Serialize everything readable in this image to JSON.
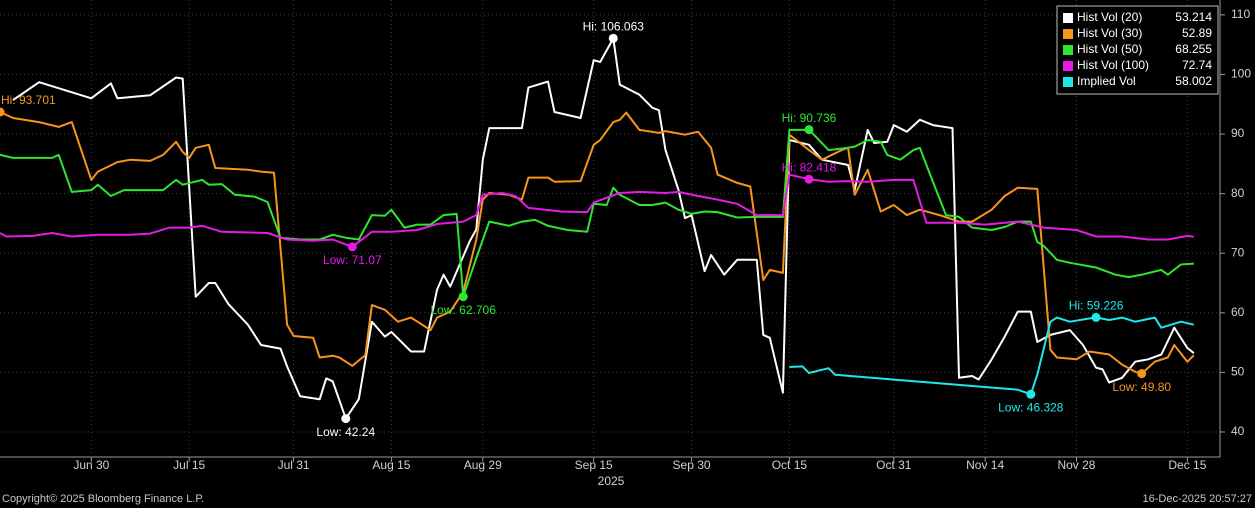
{
  "chart_data": {
    "type": "line",
    "xlabel": "2025",
    "xlim": [
      "Jun 16",
      "Dec 20"
    ],
    "xticks": [
      "Jun 30",
      "Jul 15",
      "Jul 31",
      "Aug 15",
      "Aug 29",
      "Sep 15",
      "Sep 30",
      "Oct 15",
      "Oct 31",
      "Nov 14",
      "Nov 28",
      "Dec 15"
    ],
    "ylim": [
      35.8,
      112.5
    ],
    "yticks": [
      40,
      50,
      60,
      70,
      80,
      90,
      100,
      110
    ],
    "grid": true,
    "legend": "top-right",
    "series": [
      {
        "name": "Hist Vol (20)",
        "color": "#ffffff",
        "last_value": 53.214,
        "x": [
          "Jun 18",
          "Jun 22",
          "Jun 30",
          "Jul 3",
          "Jul 4",
          "Jul 9",
          "Jul 13",
          "Jul 14",
          "Jul 16",
          "Jul 18",
          "Jul 19",
          "Jul 21",
          "Jul 24",
          "Jul 26",
          "Jul 29",
          "Jul 30",
          "Aug 1",
          "Aug 4",
          "Aug 5",
          "Aug 6",
          "Aug 8",
          "Aug 10",
          "Aug 12",
          "Aug 14",
          "Aug 15",
          "Aug 18",
          "Aug 20",
          "Aug 22",
          "Aug 23",
          "Aug 24",
          "Aug 27",
          "Aug 28",
          "Aug 29",
          "Aug 30",
          "Sep 4",
          "Sep 5",
          "Sep 8",
          "Sep 9",
          "Sep 13",
          "Sep 15",
          "Sep 16",
          "Sep 18",
          "Sep 19",
          "Sep 22",
          "Sep 24",
          "Sep 25",
          "Sep 26",
          "Sep 28",
          "Sep 29",
          "Sep 30",
          "Oct 2",
          "Oct 3",
          "Oct 5",
          "Oct 7",
          "Oct 10",
          "Oct 11",
          "Oct 12",
          "Oct 14",
          "Oct 15",
          "Oct 18",
          "Oct 20",
          "Oct 24",
          "Oct 25",
          "Oct 27",
          "Oct 28",
          "Oct 30",
          "Oct 31",
          "Nov 2",
          "Nov 4",
          "Nov 6",
          "Nov 9",
          "Nov 10",
          "Nov 12",
          "Nov 13",
          "Nov 15",
          "Nov 17",
          "Nov 19",
          "Nov 21",
          "Nov 22",
          "Nov 24",
          "Nov 27",
          "Nov 29",
          "Dec 1",
          "Dec 2",
          "Dec 3",
          "Dec 5",
          "Dec 7",
          "Dec 9",
          "Dec 11",
          "Dec 13",
          "Dec 15",
          "Dec 16"
        ],
        "values": [
          95.7,
          98.7,
          96,
          98.5,
          96,
          96.5,
          99.5,
          99.3,
          62.7,
          65,
          65,
          61.5,
          58,
          54.6,
          54,
          51,
          46,
          45.5,
          49,
          48.5,
          42.24,
          45.5,
          58.5,
          56,
          56.8,
          53.5,
          53.5,
          63.9,
          66.4,
          64.4,
          72,
          74,
          85.7,
          91,
          91,
          97.8,
          98.8,
          93.7,
          92.7,
          102.4,
          102.1,
          106.063,
          98.3,
          96.6,
          94.4,
          94,
          87.3,
          80.6,
          75.9,
          76.4,
          67,
          69.7,
          66.4,
          68.9,
          68.9,
          56.3,
          55.8,
          46.6,
          89,
          88.2,
          85.7,
          84.8,
          80.6,
          90.7,
          88.5,
          88.7,
          91.5,
          90.4,
          92.4,
          91.5,
          91,
          49.1,
          49.4,
          48.8,
          52.2,
          56,
          60.2,
          60.2,
          55.1,
          56.3,
          57.1,
          54.6,
          50.8,
          50.5,
          48.3,
          49.1,
          51.8,
          52.2,
          53,
          57.5,
          54.1,
          53.214
        ]
      },
      {
        "name": "Hist Vol (30)",
        "color": "#f7941d",
        "last_value": 52.89,
        "x": [
          "Jun 16",
          "Jun 18",
          "Jun 22",
          "Jun 25",
          "Jun 26",
          "Jun 27",
          "Jun 30",
          "Jul 1",
          "Jul 4",
          "Jul 6",
          "Jul 9",
          "Jul 11",
          "Jul 13",
          "Jul 14",
          "Jul 15",
          "Jul 16",
          "Jul 18",
          "Jul 19",
          "Jul 24",
          "Jul 26",
          "Jul 28",
          "Jul 30",
          "Jul 31",
          "Aug 3",
          "Aug 4",
          "Aug 6",
          "Aug 7",
          "Aug 9",
          "Aug 11",
          "Aug 12",
          "Aug 14",
          "Aug 16",
          "Aug 18",
          "Aug 19",
          "Aug 21",
          "Aug 22",
          "Aug 24",
          "Aug 26",
          "Aug 28",
          "Aug 29",
          "Aug 30",
          "Sep 2",
          "Sep 4",
          "Sep 5",
          "Sep 8",
          "Sep 9",
          "Sep 13",
          "Sep 15",
          "Sep 16",
          "Sep 18",
          "Sep 19",
          "Sep 20",
          "Sep 22",
          "Sep 25",
          "Sep 26",
          "Sep 29",
          "Oct 1",
          "Oct 3",
          "Oct 4",
          "Oct 7",
          "Oct 9",
          "Oct 11",
          "Oct 12",
          "Oct 14",
          "Oct 15",
          "Oct 18",
          "Oct 20",
          "Oct 23",
          "Oct 24",
          "Oct 25",
          "Oct 27",
          "Oct 29",
          "Oct 31",
          "Nov 2",
          "Nov 4",
          "Nov 7",
          "Nov 10",
          "Nov 12",
          "Nov 15",
          "Nov 17",
          "Nov 19",
          "Nov 22",
          "Nov 24",
          "Nov 25",
          "Nov 28",
          "Nov 30",
          "Dec 3",
          "Dec 5",
          "Dec 7",
          "Dec 8",
          "Dec 10",
          "Dec 12",
          "Dec 13",
          "Dec 15",
          "Dec 16"
        ],
        "values": [
          93.701,
          92.7,
          92,
          91.2,
          91.6,
          92,
          82.3,
          83.7,
          85.3,
          85.7,
          85.5,
          86.5,
          88.7,
          87,
          86,
          87.7,
          88.2,
          84.3,
          84,
          83.7,
          83.5,
          58,
          56.1,
          55.8,
          52.5,
          52.8,
          52.5,
          51.1,
          52.9,
          61.3,
          60.5,
          58.5,
          59.2,
          58.5,
          57.1,
          59.2,
          60.2,
          63.5,
          72.3,
          79,
          80.1,
          79.8,
          79,
          82.7,
          82.7,
          82,
          82.1,
          88.2,
          89,
          92,
          92.4,
          93.6,
          90.7,
          90.2,
          90.5,
          89.9,
          90.4,
          87.7,
          83.2,
          81.8,
          81.2,
          65.5,
          67.2,
          66.7,
          89.9,
          87.3,
          85.7,
          87.3,
          87.7,
          79.8,
          84,
          77,
          78.1,
          76.4,
          77.3,
          76.4,
          75.3,
          75.3,
          77.3,
          79.6,
          81,
          80.8,
          53.8,
          52.5,
          52.2,
          53.5,
          53,
          51.3,
          50.1,
          49.8,
          51.8,
          52.5,
          54.6,
          51.8,
          52.89
        ]
      },
      {
        "name": "Hist Vol (50)",
        "color": "#2ee62e",
        "last_value": 68.255,
        "x": [
          "Jun 16",
          "Jun 18",
          "Jun 24",
          "Jun 25",
          "Jun 27",
          "Jun 30",
          "Jul 1",
          "Jul 3",
          "Jul 5",
          "Jul 11",
          "Jul 13",
          "Jul 14",
          "Jul 17",
          "Jul 18",
          "Jul 20",
          "Jul 22",
          "Jul 25",
          "Jul 27",
          "Jul 29",
          "Aug 1",
          "Aug 4",
          "Aug 6",
          "Aug 8",
          "Aug 10",
          "Aug 12",
          "Aug 14",
          "Aug 15",
          "Aug 17",
          "Aug 19",
          "Aug 21",
          "Aug 23",
          "Aug 25",
          "Aug 26",
          "Aug 28",
          "Aug 30",
          "Sep 2",
          "Sep 4",
          "Sep 6",
          "Sep 8",
          "Sep 11",
          "Sep 14",
          "Sep 15",
          "Sep 17",
          "Sep 18",
          "Sep 19",
          "Sep 22",
          "Sep 24",
          "Sep 26",
          "Sep 28",
          "Sep 30",
          "Oct 2",
          "Oct 4",
          "Oct 7",
          "Oct 10",
          "Oct 14",
          "Oct 15",
          "Oct 17",
          "Oct 18",
          "Oct 21",
          "Oct 24",
          "Oct 25",
          "Oct 27",
          "Oct 29",
          "Oct 30",
          "Nov 1",
          "Nov 3",
          "Nov 4",
          "Nov 5",
          "Nov 8",
          "Nov 10",
          "Nov 12",
          "Nov 15",
          "Nov 17",
          "Nov 19",
          "Nov 21",
          "Nov 22",
          "Nov 23",
          "Nov 25",
          "Nov 27",
          "Dec 1",
          "Dec 4",
          "Dec 6",
          "Dec 8",
          "Dec 11",
          "Dec 12",
          "Dec 14",
          "Dec 16"
        ],
        "values": [
          86.5,
          86,
          86,
          86.5,
          80.3,
          80.6,
          81.5,
          79.6,
          80.6,
          80.6,
          82.3,
          81.5,
          82.3,
          81.5,
          81.6,
          79.8,
          79.5,
          78.6,
          72.6,
          72.3,
          72.3,
          73.1,
          72.6,
          72.3,
          76.4,
          76.3,
          77.3,
          74.3,
          74.8,
          74.8,
          76.4,
          76.6,
          62.706,
          69.2,
          75.3,
          74.6,
          75.3,
          75.6,
          74.6,
          73.9,
          73.6,
          78.3,
          78.1,
          81,
          79.8,
          78.1,
          78.1,
          78.5,
          77.3,
          76.6,
          77,
          76.9,
          76,
          76.1,
          76.1,
          90.7,
          90.7,
          90.736,
          87.3,
          87.7,
          87.9,
          89,
          88.7,
          86.5,
          85.7,
          87.3,
          87.7,
          84.8,
          76.4,
          76.1,
          74.3,
          73.9,
          74.4,
          75.3,
          75.3,
          71.9,
          71.2,
          68.9,
          68.4,
          67.6,
          66.4,
          66,
          66.4,
          67.2,
          66.4,
          68.1,
          68.255
        ]
      },
      {
        "name": "Hist Vol (100)",
        "color": "#e61ae6",
        "last_value": 72.74,
        "x": [
          "Jun 16",
          "Jun 17",
          "Jun 21",
          "Jun 24",
          "Jun 27",
          "Jul 1",
          "Jul 6",
          "Jul 9",
          "Jul 12",
          "Jul 15",
          "Jul 17",
          "Jul 20",
          "Jul 27",
          "Jul 30",
          "Aug 3",
          "Aug 6",
          "Aug 9",
          "Aug 12",
          "Aug 15",
          "Aug 19",
          "Aug 22",
          "Aug 26",
          "Aug 28",
          "Aug 29",
          "Sep 1",
          "Sep 3",
          "Sep 5",
          "Sep 10",
          "Sep 14",
          "Sep 15",
          "Sep 19",
          "Sep 22",
          "Sep 26",
          "Sep 28",
          "Oct 1",
          "Oct 4",
          "Oct 7",
          "Oct 10",
          "Oct 14",
          "Oct 15",
          "Oct 18",
          "Oct 21",
          "Oct 24",
          "Oct 27",
          "Oct 31",
          "Nov 3",
          "Nov 5",
          "Nov 10",
          "Nov 14",
          "Nov 19",
          "Nov 23",
          "Nov 28",
          "Dec 1",
          "Dec 5",
          "Dec 9",
          "Dec 12",
          "Dec 15",
          "Dec 16"
        ],
        "values": [
          73.4,
          72.8,
          72.9,
          73.4,
          72.8,
          73.1,
          73.1,
          73.3,
          74.3,
          74.3,
          74.6,
          73.6,
          73.4,
          72.3,
          72.1,
          72.3,
          71.07,
          73.6,
          73.6,
          73.9,
          74.9,
          75.3,
          76.4,
          79.8,
          80.1,
          79.6,
          77.6,
          77,
          76.9,
          78.5,
          80.1,
          80.3,
          80.1,
          80.3,
          79.6,
          79,
          78.3,
          76.4,
          76.4,
          83.2,
          82.418,
          82,
          82.1,
          82,
          82.3,
          82.3,
          75.1,
          75.1,
          74.8,
          75.3,
          74.3,
          73.9,
          72.8,
          72.8,
          72.3,
          72.3,
          72.9,
          72.74
        ]
      },
      {
        "name": "Implied Vol",
        "color": "#1de9e9",
        "last_value": 58.002,
        "x": [
          "Oct 15",
          "Oct 17",
          "Oct 18",
          "Oct 21",
          "Oct 22",
          "Nov 19",
          "Nov 21",
          "Nov 22",
          "Nov 24",
          "Nov 25",
          "Nov 27",
          "Dec 1",
          "Dec 3",
          "Dec 5",
          "Dec 7",
          "Dec 10",
          "Dec 11",
          "Dec 14",
          "Dec 16"
        ],
        "values": [
          50.9,
          51,
          49.9,
          50.7,
          49.6,
          47.1,
          46.328,
          49.6,
          58.5,
          59.2,
          58.5,
          59.226,
          58.8,
          59.2,
          58.5,
          59.2,
          57.5,
          58.5,
          58.002
        ]
      }
    ],
    "annotations": [
      {
        "text": "Hi: 106.063",
        "x": "Sep 18",
        "value": 106.063,
        "color": "#ffffff",
        "position": "above"
      },
      {
        "text": "Low: 42.24",
        "x": "Aug 8",
        "value": 42.24,
        "color": "#ffffff",
        "position": "below"
      },
      {
        "text": "Hi: 93.701",
        "x": "Jun 16",
        "value": 93.701,
        "color": "#f7941d",
        "position": "above"
      },
      {
        "text": "Low: 49.80",
        "x": "Dec 8",
        "value": 49.8,
        "color": "#f7941d",
        "position": "below"
      },
      {
        "text": "Hi: 90.736",
        "x": "Oct 18",
        "value": 90.736,
        "color": "#2ee62e",
        "position": "above"
      },
      {
        "text": "Low: 62.706",
        "x": "Aug 26",
        "value": 62.706,
        "color": "#2ee62e",
        "position": "below"
      },
      {
        "text": "Hi: 82.418",
        "x": "Oct 18",
        "value": 82.418,
        "color": "#e61ae6",
        "position": "above"
      },
      {
        "text": "Low: 71.07",
        "x": "Aug 9",
        "value": 71.07,
        "color": "#e61ae6",
        "position": "below"
      },
      {
        "text": "Hi: 59.226",
        "x": "Dec 1",
        "value": 59.226,
        "color": "#1de9e9",
        "position": "above"
      },
      {
        "text": "Low: 46.328",
        "x": "Nov 21",
        "value": 46.328,
        "color": "#1de9e9",
        "position": "below"
      }
    ]
  },
  "footer": {
    "copyright": "Copyright© 2025 Bloomberg Finance L.P.",
    "timestamp": "16-Dec-2025 20:57:27"
  }
}
